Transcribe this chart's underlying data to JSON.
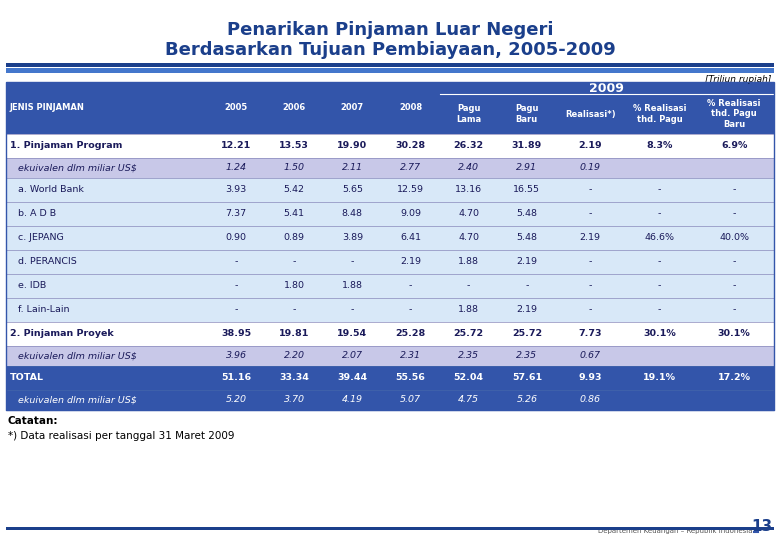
{
  "title_line1": "Penarikan Pinjaman Luar Negeri",
  "title_line2": "Berdasarkan Tujuan Pembiayaan, 2005-2009",
  "unit_label": "[Triliun rupiah]",
  "header_2009": "2009",
  "col_headers": [
    "JENIS PINJAMAN",
    "2005",
    "2006",
    "2007",
    "2008",
    "Pagu\nLama",
    "Pagu\nBaru",
    "Realisasi*)",
    "% Realisasi\nthd. Pagu",
    "% Realisasi\nthd. Pagu\nBaru"
  ],
  "rows": [
    {
      "label": "1. Pinjaman Program",
      "bold": true,
      "italic": false,
      "bg": "white",
      "vals": [
        "12.21",
        "13.53",
        "19.90",
        "30.28",
        "26.32",
        "31.89",
        "2.19",
        "8.3%",
        "6.9%"
      ]
    },
    {
      "label": "ekuivalen dlm miliar US$",
      "bold": false,
      "italic": true,
      "bg": "light_purple",
      "vals": [
        "1.24",
        "1.50",
        "2.11",
        "2.77",
        "2.40",
        "2.91",
        "0.19",
        "",
        ""
      ]
    },
    {
      "label": "a. World Bank",
      "bold": false,
      "italic": false,
      "bg": "light_blue",
      "vals": [
        "3.93",
        "5.42",
        "5.65",
        "12.59",
        "13.16",
        "16.55",
        "-",
        "-",
        "-"
      ]
    },
    {
      "label": "b. A D B",
      "bold": false,
      "italic": false,
      "bg": "light_blue",
      "vals": [
        "7.37",
        "5.41",
        "8.48",
        "9.09",
        "4.70",
        "5.48",
        "-",
        "-",
        "-"
      ]
    },
    {
      "label": "c. JEPANG",
      "bold": false,
      "italic": false,
      "bg": "light_blue",
      "vals": [
        "0.90",
        "0.89",
        "3.89",
        "6.41",
        "4.70",
        "5.48",
        "2.19",
        "46.6%",
        "40.0%"
      ]
    },
    {
      "label": "d. PERANCIS",
      "bold": false,
      "italic": false,
      "bg": "light_blue",
      "vals": [
        "-",
        "-",
        "-",
        "2.19",
        "1.88",
        "2.19",
        "-",
        "-",
        "-"
      ]
    },
    {
      "label": "e. IDB",
      "bold": false,
      "italic": false,
      "bg": "light_blue",
      "vals": [
        "-",
        "1.80",
        "1.88",
        "-",
        "-",
        "-",
        "-",
        "-",
        "-"
      ]
    },
    {
      "label": "f. Lain-Lain",
      "bold": false,
      "italic": false,
      "bg": "light_blue",
      "vals": [
        "-",
        "-",
        "-",
        "-",
        "1.88",
        "2.19",
        "-",
        "-",
        "-"
      ]
    },
    {
      "label": "2. Pinjaman Proyek",
      "bold": true,
      "italic": false,
      "bg": "white",
      "vals": [
        "38.95",
        "19.81",
        "19.54",
        "25.28",
        "25.72",
        "25.72",
        "7.73",
        "30.1%",
        "30.1%"
      ]
    },
    {
      "label": "ekuivalen dlm miliar US$",
      "bold": false,
      "italic": true,
      "bg": "light_purple",
      "vals": [
        "3.96",
        "2.20",
        "2.07",
        "2.31",
        "2.35",
        "2.35",
        "0.67",
        "",
        ""
      ]
    },
    {
      "label": "TOTAL",
      "bold": true,
      "italic": false,
      "bg": "dark_blue",
      "vals": [
        "51.16",
        "33.34",
        "39.44",
        "55.56",
        "52.04",
        "57.61",
        "9.93",
        "19.1%",
        "17.2%"
      ]
    },
    {
      "label": "ekuivalen dlm miliar US$",
      "bold": false,
      "italic": true,
      "bg": "dark_blue",
      "vals": [
        "5.20",
        "3.70",
        "4.19",
        "5.07",
        "4.75",
        "5.26",
        "0.86",
        "",
        ""
      ]
    }
  ],
  "footer_note1": "Catatan:",
  "footer_note2": "*) Data realisasi per tanggal 31 Maret 2009",
  "footer_right": "Departemen Keuangan – Republik Indonesia",
  "page_num": "13",
  "colors": {
    "title": "#1B3F8B",
    "header_bg": "#3355AA",
    "dark_blue_bg": "#3355AA",
    "dark_blue_text": "#FFFFFF",
    "light_purple_bg": "#C8C8E8",
    "light_blue_bg": "#D8E8F8",
    "white_bg": "#FFFFFF",
    "bold_text": "#1A1A5A",
    "normal_text": "#1A1A5A",
    "footer_line": "#1B3F8B",
    "separator1": "#1B3F8B",
    "separator2": "#4477CC"
  }
}
